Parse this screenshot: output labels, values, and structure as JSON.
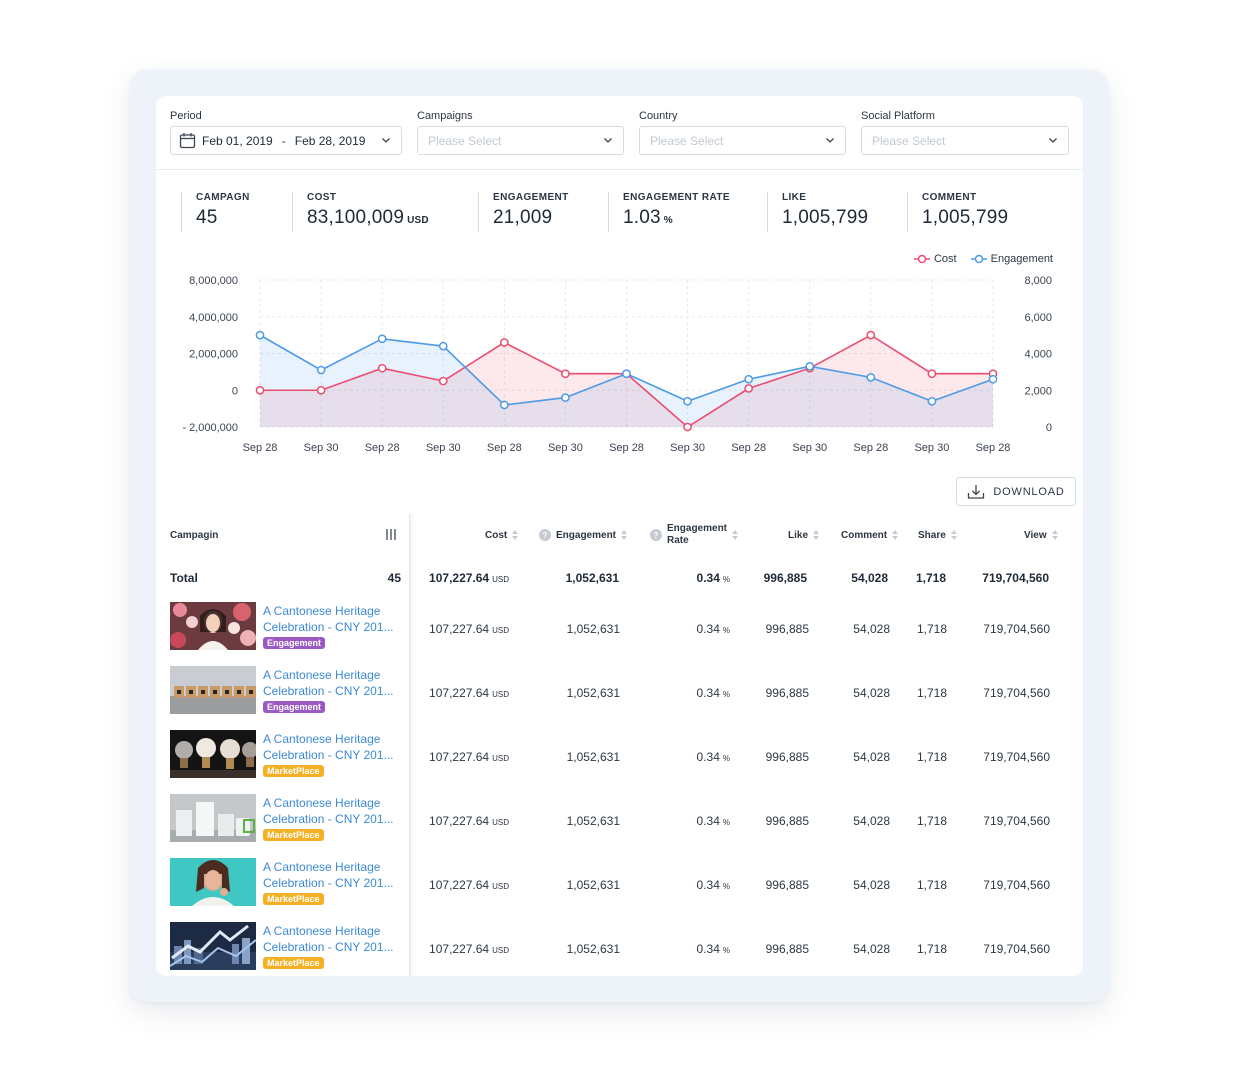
{
  "filters": {
    "period_label": "Period",
    "period_start": "Feb 01, 2019",
    "period_sep": "-",
    "period_end": "Feb 28, 2019",
    "campaigns_label": "Campaigns",
    "campaigns_placeholder": "Please Select",
    "country_label": "Country",
    "country_placeholder": "Please Select",
    "platform_label": "Social Platform",
    "platform_placeholder": "Please Select"
  },
  "stats": [
    {
      "label": "CAMPAGN",
      "value": "45",
      "unit": ""
    },
    {
      "label": "COST",
      "value": "83,100,009",
      "unit": "USD"
    },
    {
      "label": "ENGAGEMENT",
      "value": "21,009",
      "unit": ""
    },
    {
      "label": "ENGAGEMENT RATE",
      "value": "1.03",
      "unit": "%"
    },
    {
      "label": "LIKE",
      "value": "1,005,799",
      "unit": ""
    },
    {
      "label": "COMMENT",
      "value": "1,005,799",
      "unit": ""
    }
  ],
  "chart_data": {
    "type": "line",
    "legend_position": "top-right",
    "categories": [
      "Sep 28",
      "Sep 30",
      "Sep 28",
      "Sep 30",
      "Sep 28",
      "Sep 30",
      "Sep 28",
      "Sep 30",
      "Sep 28",
      "Sep 30",
      "Sep 28",
      "Sep 30",
      "Sep 28"
    ],
    "series": [
      {
        "name": "Cost",
        "axis": "left",
        "color": "#ec4d6e",
        "values": [
          0,
          0,
          1200000,
          500000,
          2600000,
          900000,
          900000,
          -2000000,
          100000,
          1200000,
          3000000,
          900000,
          900000
        ]
      },
      {
        "name": "Engagement",
        "axis": "right",
        "color": "#4c9be6",
        "values": [
          5000,
          3100,
          4800,
          4400,
          1200,
          1600,
          2900,
          1400,
          2600,
          3300,
          2700,
          1400,
          2600
        ]
      }
    ],
    "y_left": {
      "ticks": [
        -2000000,
        0,
        2000000,
        4000000,
        8000000
      ],
      "tick_labels": [
        "- 2,000,000",
        "0",
        "2,000,000",
        "4,000,000",
        "8,000,000"
      ]
    },
    "y_right": {
      "ticks": [
        0,
        2000,
        4000,
        6000,
        8000
      ],
      "tick_labels": [
        "0",
        "2,000",
        "4,000",
        "6,000",
        "8,000"
      ]
    },
    "grid": true
  },
  "download_label": "DOWNLOAD",
  "table": {
    "campaign_header": "Campagin",
    "headers": [
      "Cost",
      "Engagement",
      "Engagement",
      "Rate",
      "Like",
      "Comment",
      "Share",
      "View"
    ],
    "total": {
      "label": "Total",
      "count": "45",
      "cost": "107,227.64",
      "cost_unit": "USD",
      "engagement": "1,052,631",
      "rate": "0.34",
      "rate_unit": "%",
      "like": "996,885",
      "comment": "54,028",
      "share": "1,718",
      "view": "719,704,560"
    },
    "rows": [
      {
        "title1": "A Cantonese Heritage",
        "title2": "Celebration - CNY 201...",
        "tag": "Engagement",
        "tag_color": "purple",
        "cost": "107,227.64",
        "cost_unit": "USD",
        "engagement": "1,052,631",
        "rate": "0.34",
        "rate_unit": "%",
        "like": "996,885",
        "comment": "54,028",
        "share": "1,718",
        "view": "719,704,560"
      },
      {
        "title1": "A Cantonese Heritage",
        "title2": "Celebration - CNY 201...",
        "tag": "Engagement",
        "tag_color": "purple",
        "cost": "107,227.64",
        "cost_unit": "USD",
        "engagement": "1,052,631",
        "rate": "0.34",
        "rate_unit": "%",
        "like": "996,885",
        "comment": "54,028",
        "share": "1,718",
        "view": "719,704,560"
      },
      {
        "title1": "A Cantonese Heritage",
        "title2": "Celebration - CNY 201...",
        "tag": "MarketPlace",
        "tag_color": "orange",
        "cost": "107,227.64",
        "cost_unit": "USD",
        "engagement": "1,052,631",
        "rate": "0.34",
        "rate_unit": "%",
        "like": "996,885",
        "comment": "54,028",
        "share": "1,718",
        "view": "719,704,560"
      },
      {
        "title1": "A Cantonese Heritage",
        "title2": "Celebration - CNY 201...",
        "tag": "MarketPlace",
        "tag_color": "orange",
        "cost": "107,227.64",
        "cost_unit": "USD",
        "engagement": "1,052,631",
        "rate": "0.34",
        "rate_unit": "%",
        "like": "996,885",
        "comment": "54,028",
        "share": "1,718",
        "view": "719,704,560"
      },
      {
        "title1": "A Cantonese Heritage",
        "title2": "Celebration - CNY 201...",
        "tag": "MarketPlace",
        "tag_color": "orange",
        "cost": "107,227.64",
        "cost_unit": "USD",
        "engagement": "1,052,631",
        "rate": "0.34",
        "rate_unit": "%",
        "like": "996,885",
        "comment": "54,028",
        "share": "1,718",
        "view": "719,704,560"
      },
      {
        "title1": "A Cantonese Heritage",
        "title2": "Celebration - CNY 201...",
        "tag": "MarketPlace",
        "tag_color": "orange",
        "cost": "107,227.64",
        "cost_unit": "USD",
        "engagement": "1,052,631",
        "rate": "0.34",
        "rate_unit": "%",
        "like": "996,885",
        "comment": "54,028",
        "share": "1,718",
        "view": "719,704,560"
      }
    ]
  }
}
